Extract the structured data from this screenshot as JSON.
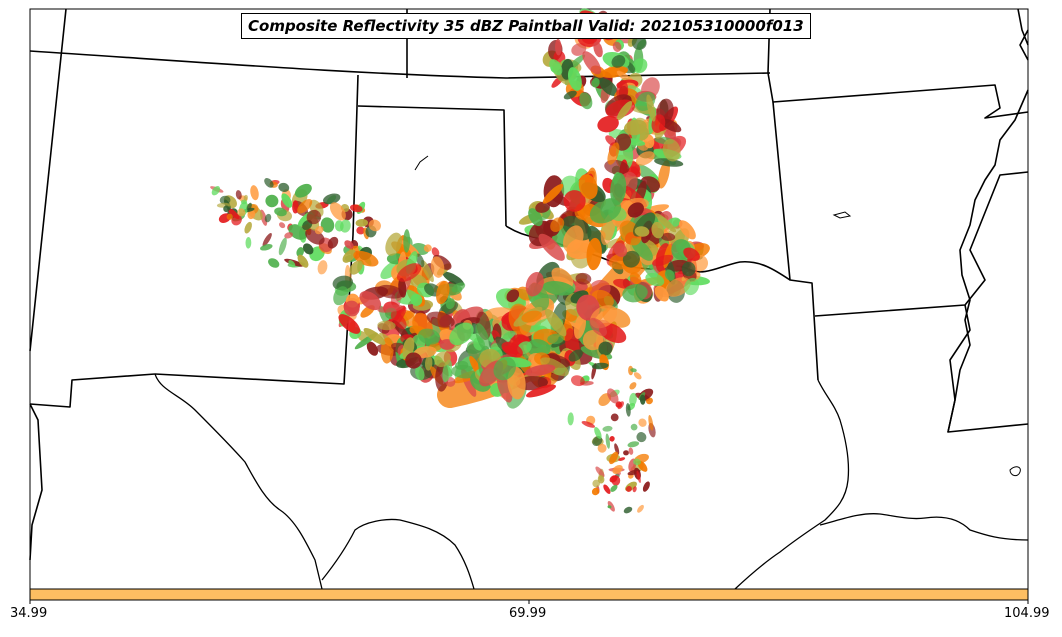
{
  "title": "Composite Reflectivity 35 dBZ Paintball Valid: 202105310000f013",
  "colorbar": {
    "color": "#fdbe62",
    "ticks": [
      "34.99",
      "69.99",
      "104.99"
    ]
  },
  "colors": {
    "background": "#ffffff",
    "state_borders": "#000000",
    "paintball": [
      "#f47a00",
      "#e41a1c",
      "#4daf4a",
      "#b5a93c",
      "#8b1a1a",
      "#2e5e2e",
      "#ff9a3c",
      "#d94848",
      "#5fdc5f"
    ]
  }
}
